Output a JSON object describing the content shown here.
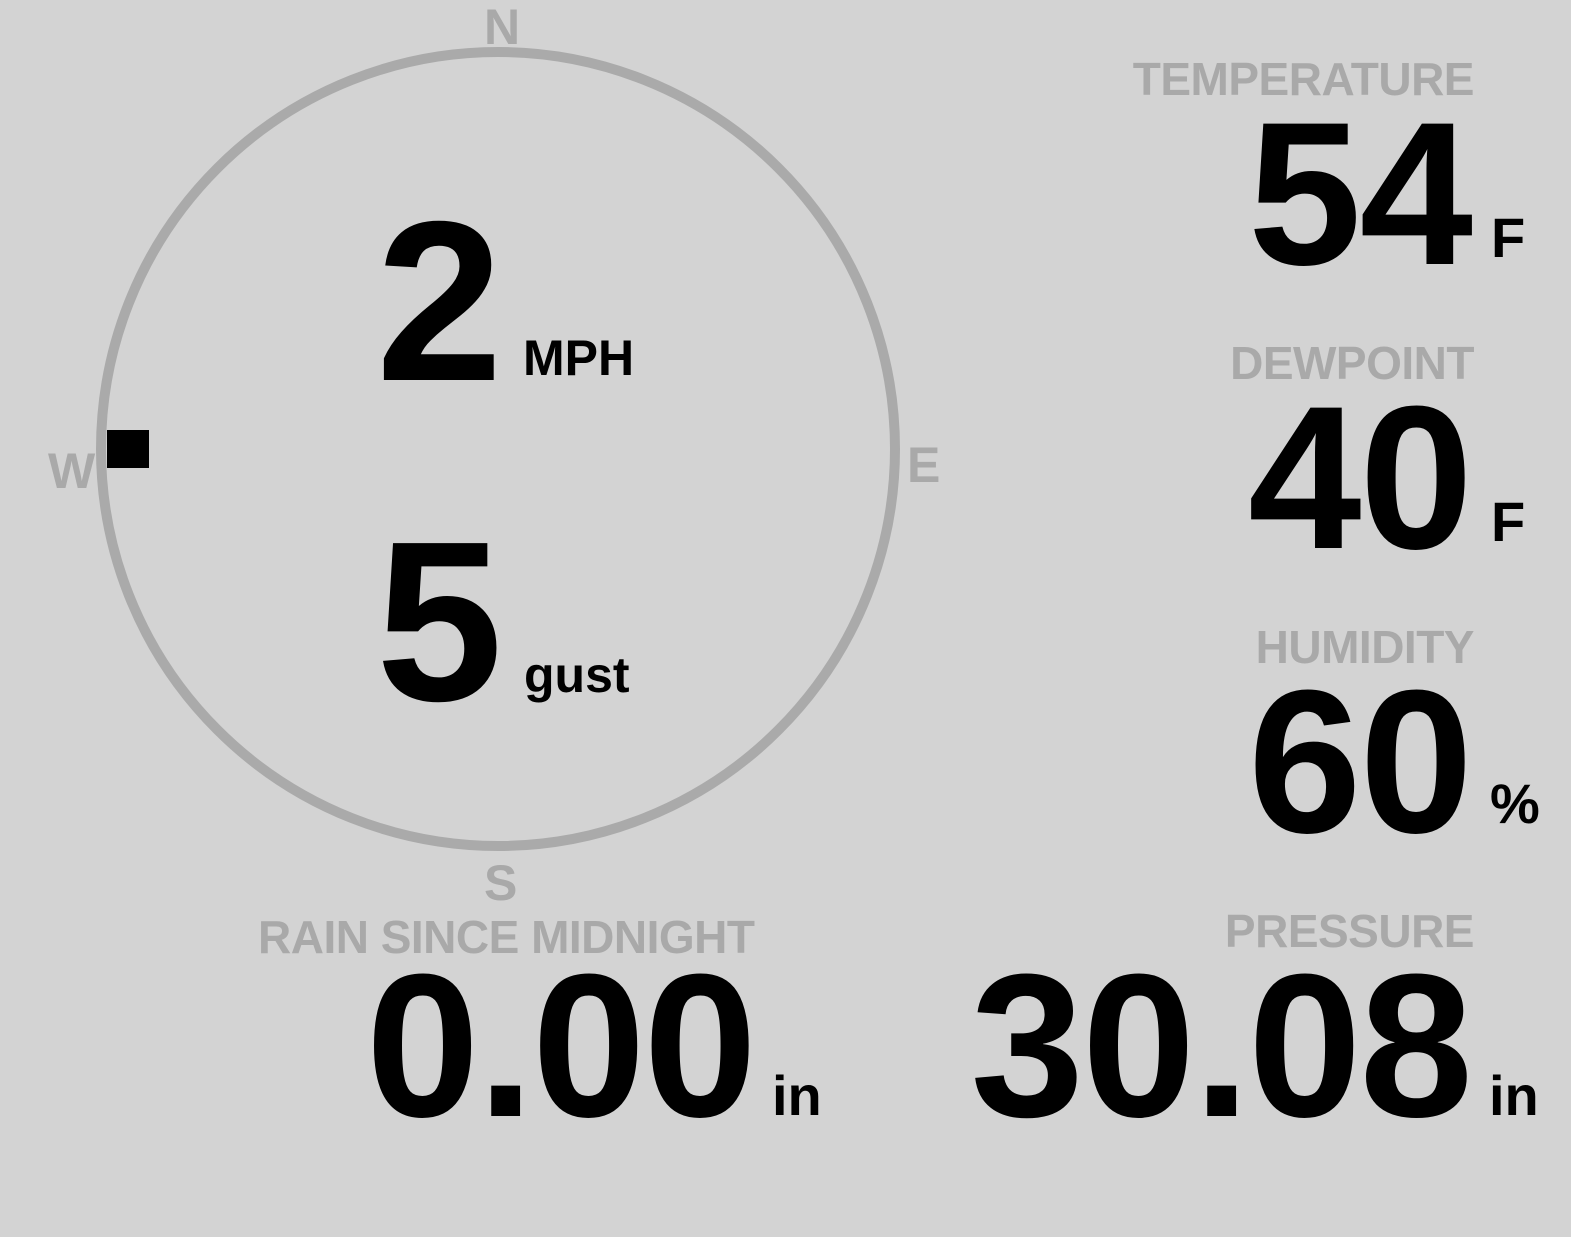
{
  "colors": {
    "background": "#d3d3d3",
    "label": "#a9a9a9",
    "value": "#000000",
    "dial": "#aaaaaa"
  },
  "wind": {
    "cardinals": {
      "n": "N",
      "e": "E",
      "s": "S",
      "w": "W"
    },
    "direction_deg": 270,
    "speed": "2",
    "speed_unit": "MPH",
    "gust": "5",
    "gust_unit": "gust"
  },
  "temperature": {
    "label": "TEMPERATURE",
    "value": "54",
    "unit": "F"
  },
  "dewpoint": {
    "label": "DEWPOINT",
    "value": "40",
    "unit": "F"
  },
  "humidity": {
    "label": "HUMIDITY",
    "value": "60",
    "unit": "%"
  },
  "pressure": {
    "label": "PRESSURE",
    "value": "30.08",
    "unit": "in"
  },
  "rain": {
    "label": "RAIN SINCE MIDNIGHT",
    "value": "0.00",
    "unit": "in"
  }
}
